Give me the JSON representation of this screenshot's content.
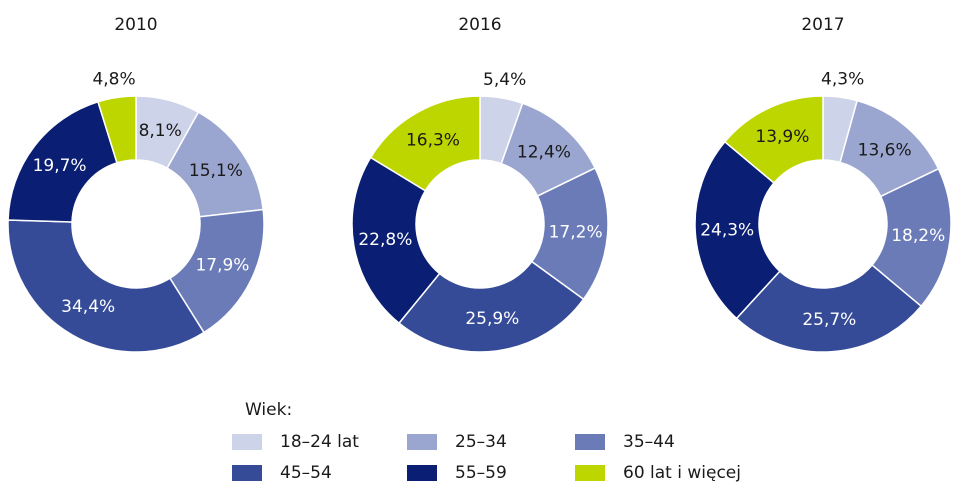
{
  "chart_data": [
    {
      "type": "donut",
      "title": "2010",
      "values": [
        8.1,
        15.1,
        17.9,
        34.4,
        19.7,
        4.8
      ],
      "value_labels": [
        "8,1%",
        "15,1%",
        "17,9%",
        "34,4%",
        "19,7%",
        "4,8%"
      ]
    },
    {
      "type": "donut",
      "title": "2016",
      "values": [
        5.4,
        12.4,
        17.2,
        25.9,
        22.8,
        16.3
      ],
      "value_labels": [
        "5,4%",
        "12,4%",
        "17,2%",
        "25,9%",
        "22,8%",
        "16,3%"
      ]
    },
    {
      "type": "donut",
      "title": "2017",
      "values": [
        4.3,
        13.6,
        18.2,
        25.7,
        24.3,
        13.9
      ],
      "value_labels": [
        "4,3%",
        "13,6%",
        "18,2%",
        "25,7%",
        "24,3%",
        "13,9%"
      ]
    }
  ],
  "legend": {
    "title": "Wiek:",
    "items": [
      {
        "name": "18–24 lat",
        "color": "#cdd3e8"
      },
      {
        "name": "25–34",
        "color": "#9aa6d0"
      },
      {
        "name": "35–44",
        "color": "#6a7bb8"
      },
      {
        "name": "45–54",
        "color": "#354b97"
      },
      {
        "name": "55–59",
        "color": "#0a1e73"
      },
      {
        "name": "60 lat i więcej",
        "color": "#bed600"
      }
    ]
  }
}
